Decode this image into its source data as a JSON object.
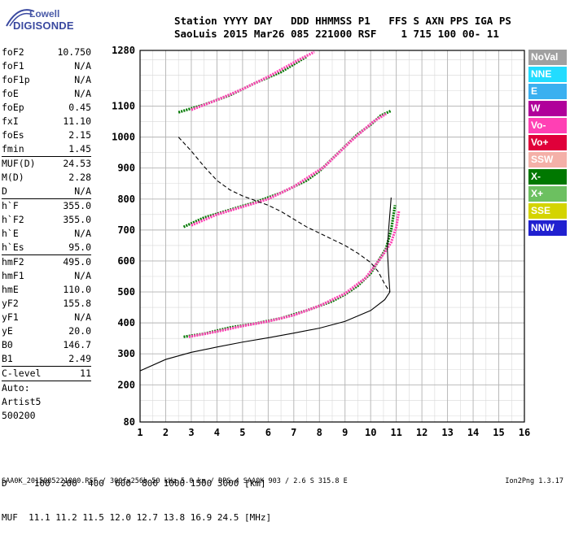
{
  "logo": {
    "line1": "Lowell",
    "line2": "DIGISONDE"
  },
  "header": {
    "line1": "Station YYYY DAY   DDD HHMMSS P1   FFS S AXN PPS IGA PS",
    "line2": "SaoLuis 2015 Mar26 085 221000 RSF    1 715 100 00- 11"
  },
  "params": [
    {
      "k": "foF2",
      "v": "10.750"
    },
    {
      "k": "foF1",
      "v": "N/A"
    },
    {
      "k": "foF1p",
      "v": "N/A"
    },
    {
      "k": "foE",
      "v": "N/A"
    },
    {
      "k": "foEp",
      "v": "0.45"
    },
    {
      "k": "fxI",
      "v": "11.10"
    },
    {
      "k": "foEs",
      "v": "2.15"
    },
    {
      "k": "fmin",
      "v": "1.45"
    },
    {
      "sep": true
    },
    {
      "k": "MUF(D)",
      "v": "24.53"
    },
    {
      "k": "M(D)",
      "v": "2.28"
    },
    {
      "k": "D",
      "v": "N/A"
    },
    {
      "sep": true
    },
    {
      "k": "h`F",
      "v": "355.0"
    },
    {
      "k": "h`F2",
      "v": "355.0"
    },
    {
      "k": "h`E",
      "v": "N/A"
    },
    {
      "k": "h`Es",
      "v": "95.0"
    },
    {
      "sep": true
    },
    {
      "k": "hmF2",
      "v": "495.0"
    },
    {
      "k": "hmF1",
      "v": "N/A"
    },
    {
      "k": "hmE",
      "v": "110.0"
    },
    {
      "k": "yF2",
      "v": "155.8"
    },
    {
      "k": "yF1",
      "v": "N/A"
    },
    {
      "k": "yE",
      "v": "20.0"
    },
    {
      "k": "B0",
      "v": "146.7"
    },
    {
      "k": "B1",
      "v": "2.49"
    },
    {
      "sep": true
    },
    {
      "k": "C-level",
      "v": "11"
    },
    {
      "sep": true
    },
    {
      "text": "Auto:"
    },
    {
      "text": "Artist5"
    },
    {
      "text": "500200"
    }
  ],
  "legend": [
    {
      "label": "NoVal",
      "color": "#a0a0a0"
    },
    {
      "label": "NNE",
      "color": "#22dcff"
    },
    {
      "label": "E",
      "color": "#3ab0f0"
    },
    {
      "label": "W",
      "color": "#b0009a"
    },
    {
      "label": "Vo-",
      "color": "#ff40b4"
    },
    {
      "label": "Vo+",
      "color": "#e0003a"
    },
    {
      "label": "SSW",
      "color": "#f4b0a8"
    },
    {
      "label": "X-",
      "color": "#007800"
    },
    {
      "label": "X+",
      "color": "#6cc060"
    },
    {
      "label": "SSE",
      "color": "#d4d400"
    },
    {
      "label": "NNW",
      "color": "#2020d0"
    }
  ],
  "bottom": {
    "line1": "D     100  200  400  600  800 1000 1500 3000 [km]",
    "line2": "MUF  11.1 11.2 11.5 12.0 12.7 13.8 16.9 24.5 [MHz]"
  },
  "footer": {
    "left": "SAA0K_2015085221000.RSF / 300fx256h 50 kHz 5.0 km / DPS-4 SAA0K 903 / 2.6 S 315.8 E",
    "right": "Ion2Png 1.3.17"
  },
  "chart_data": {
    "type": "scatter",
    "xlim": [
      1,
      16
    ],
    "ylim": [
      80,
      1280
    ],
    "x_ticks": [
      1,
      2,
      3,
      4,
      5,
      6,
      7,
      8,
      9,
      10,
      11,
      12,
      13,
      14,
      15,
      16
    ],
    "y_ticks": [
      80,
      200,
      300,
      400,
      500,
      600,
      700,
      800,
      900,
      1000,
      1100,
      1280
    ],
    "grid": true,
    "series": [
      {
        "color": "#007800",
        "points": [
          [
            2.7,
            355
          ],
          [
            3.5,
            365
          ],
          [
            4.5,
            385
          ],
          [
            5.5,
            398
          ],
          [
            6.5,
            415
          ],
          [
            7.5,
            440
          ],
          [
            8.5,
            470
          ],
          [
            9.0,
            492
          ],
          [
            9.5,
            520
          ],
          [
            10.0,
            560
          ],
          [
            10.3,
            600
          ],
          [
            10.6,
            640
          ],
          [
            10.8,
            700
          ],
          [
            10.95,
            780
          ]
        ]
      },
      {
        "color": "#ff40b4",
        "points": [
          [
            2.9,
            355
          ],
          [
            4.0,
            372
          ],
          [
            5.0,
            390
          ],
          [
            6.0,
            405
          ],
          [
            7.0,
            425
          ],
          [
            8.0,
            455
          ],
          [
            9.0,
            495
          ],
          [
            9.8,
            545
          ],
          [
            10.4,
            610
          ],
          [
            10.8,
            660
          ],
          [
            11.0,
            710
          ],
          [
            11.1,
            760
          ]
        ]
      },
      {
        "color": "#007800",
        "points": [
          [
            2.7,
            710
          ],
          [
            3.5,
            740
          ],
          [
            4.5,
            765
          ],
          [
            5.5,
            790
          ],
          [
            6.5,
            820
          ],
          [
            7.5,
            860
          ],
          [
            8.0,
            890
          ],
          [
            8.5,
            930
          ],
          [
            9.0,
            970
          ],
          [
            9.5,
            1010
          ],
          [
            10.0,
            1040
          ],
          [
            10.4,
            1070
          ],
          [
            10.8,
            1085
          ]
        ]
      },
      {
        "color": "#ff40b4",
        "points": [
          [
            3.0,
            715
          ],
          [
            4.0,
            750
          ],
          [
            5.0,
            775
          ],
          [
            6.0,
            800
          ],
          [
            7.0,
            840
          ],
          [
            8.2,
            905
          ],
          [
            9.2,
            985
          ],
          [
            10.1,
            1050
          ],
          [
            10.6,
            1075
          ]
        ]
      },
      {
        "color": "#007800",
        "points": [
          [
            2.5,
            1080
          ],
          [
            3.5,
            1105
          ],
          [
            4.5,
            1135
          ],
          [
            5.5,
            1175
          ],
          [
            6.5,
            1210
          ],
          [
            7.0,
            1235
          ],
          [
            7.5,
            1260
          ]
        ]
      },
      {
        "color": "#ff40b4",
        "points": [
          [
            3.0,
            1088
          ],
          [
            4.0,
            1120
          ],
          [
            5.0,
            1155
          ],
          [
            6.0,
            1195
          ],
          [
            7.2,
            1250
          ],
          [
            7.8,
            1275
          ]
        ]
      }
    ],
    "profile_solid": [
      [
        1,
        245
      ],
      [
        2,
        282
      ],
      [
        3,
        305
      ],
      [
        4,
        322
      ],
      [
        5,
        338
      ],
      [
        6,
        352
      ],
      [
        7,
        367
      ],
      [
        8,
        383
      ],
      [
        9,
        405
      ],
      [
        10,
        440
      ],
      [
        10.55,
        475
      ],
      [
        10.75,
        500
      ],
      [
        10.7,
        560
      ],
      [
        10.65,
        640
      ],
      [
        10.7,
        700
      ],
      [
        10.8,
        805
      ]
    ],
    "profile_dashed": [
      [
        2.5,
        1000
      ],
      [
        3.0,
        955
      ],
      [
        3.5,
        905
      ],
      [
        4.0,
        860
      ],
      [
        4.5,
        830
      ],
      [
        5.0,
        810
      ],
      [
        5.5,
        795
      ],
      [
        6.0,
        780
      ],
      [
        6.5,
        760
      ],
      [
        7.0,
        735
      ],
      [
        7.5,
        710
      ],
      [
        8.0,
        690
      ],
      [
        8.5,
        670
      ],
      [
        9.0,
        650
      ],
      [
        9.5,
        625
      ],
      [
        10.0,
        595
      ],
      [
        10.3,
        565
      ],
      [
        10.55,
        525
      ],
      [
        10.75,
        500
      ]
    ]
  }
}
